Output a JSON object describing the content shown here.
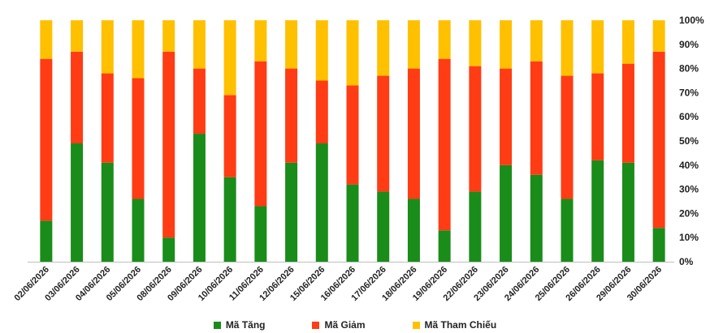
{
  "chart_data": {
    "type": "bar",
    "stacked": true,
    "percent": true,
    "categories": [
      "02/06/2026",
      "03/06/2026",
      "04/06/2026",
      "05/06/2026",
      "08/06/2026",
      "09/06/2026",
      "10/06/2026",
      "11/06/2026",
      "12/06/2026",
      "15/06/2026",
      "16/06/2026",
      "17/06/2026",
      "18/06/2026",
      "19/06/2026",
      "22/06/2026",
      "23/06/2026",
      "24/06/2026",
      "25/06/2026",
      "26/06/2026",
      "29/06/2026",
      "30/06/2026"
    ],
    "series": [
      {
        "name": "Mã Tăng",
        "color": "#1a8c1a",
        "values": [
          17,
          49,
          41,
          26,
          10,
          53,
          35,
          23,
          41,
          49,
          32,
          29,
          26,
          13,
          29,
          40,
          36,
          26,
          42,
          41,
          14
        ]
      },
      {
        "name": "Mã Giảm",
        "color": "#ff3c14",
        "values": [
          67,
          38,
          37,
          50,
          77,
          27,
          34,
          60,
          39,
          26,
          41,
          48,
          54,
          71,
          52,
          40,
          47,
          51,
          36,
          41,
          73
        ]
      },
      {
        "name": "Mã Tham Chiếu",
        "color": "#ffc000",
        "values": [
          16,
          13,
          22,
          24,
          13,
          20,
          31,
          17,
          20,
          25,
          27,
          23,
          20,
          16,
          19,
          20,
          17,
          23,
          22,
          18,
          13
        ]
      }
    ],
    "y_ticks": [
      "0%",
      "10%",
      "20%",
      "30%",
      "40%",
      "50%",
      "60%",
      "70%",
      "80%",
      "90%",
      "100%"
    ],
    "ylim": [
      0,
      100
    ],
    "y_axis_side": "right",
    "grid": false,
    "legend_position": "bottom"
  }
}
